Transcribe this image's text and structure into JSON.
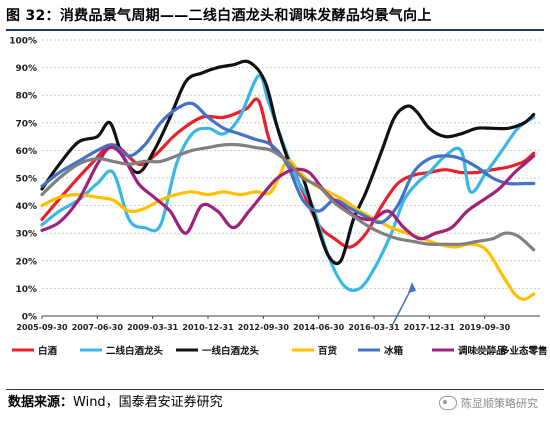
{
  "figure": {
    "title": "图 32：消费品景气周期——二线白酒龙头和调味发酵品均景气向上",
    "source_label": "数据来源：",
    "source_text": "Wind，国泰君安证券研究",
    "watermark": "陈显顺策略研究",
    "watermark_icon": "wechat-icon"
  },
  "chart_data": {
    "type": "line",
    "x_labels": [
      "2005-09-30",
      "2007-06-30",
      "2009-03-31",
      "2010-12-31",
      "2012-09-30",
      "2014-06-30",
      "2016-03-31",
      "2017-12-31",
      "2019-09-30"
    ],
    "x_range": [
      2005.75,
      2021.5
    ],
    "ylim": [
      0,
      100
    ],
    "yticks": [
      0,
      10,
      20,
      30,
      40,
      50,
      60,
      70,
      80,
      90,
      100
    ],
    "ytick_format": "%",
    "grid": "horizontal-dotted",
    "legend_position": "bottom",
    "annotation": "blue arrow pointing up-right near 2016-2017 trough",
    "series": [
      {
        "name": "白酒",
        "color": "#e8212a",
        "style": "solid",
        "points": [
          [
            2005.75,
            35
          ],
          [
            2006.5,
            45
          ],
          [
            2007.3,
            55
          ],
          [
            2008.0,
            62
          ],
          [
            2008.8,
            55
          ],
          [
            2009.3,
            58
          ],
          [
            2010.0,
            66
          ],
          [
            2010.8,
            72
          ],
          [
            2011.5,
            72
          ],
          [
            2012.2,
            75
          ],
          [
            2012.6,
            78
          ],
          [
            2013.0,
            62
          ],
          [
            2013.6,
            55
          ],
          [
            2014.0,
            45
          ],
          [
            2014.5,
            33
          ],
          [
            2015.0,
            28
          ],
          [
            2015.5,
            25
          ],
          [
            2016.0,
            30
          ],
          [
            2016.5,
            40
          ],
          [
            2017.0,
            48
          ],
          [
            2017.5,
            51
          ],
          [
            2018.0,
            52
          ],
          [
            2018.5,
            53
          ],
          [
            2019.0,
            52
          ],
          [
            2019.5,
            52
          ],
          [
            2020.0,
            53
          ],
          [
            2020.5,
            54
          ],
          [
            2021.0,
            56
          ],
          [
            2021.3,
            59
          ]
        ]
      },
      {
        "name": "二线白酒龙头",
        "color": "#39b7e6",
        "style": "solid",
        "points": [
          [
            2005.75,
            33
          ],
          [
            2006.3,
            38
          ],
          [
            2006.9,
            42
          ],
          [
            2007.5,
            48
          ],
          [
            2008.0,
            52
          ],
          [
            2008.5,
            35
          ],
          [
            2009.0,
            32
          ],
          [
            2009.5,
            33
          ],
          [
            2010.0,
            55
          ],
          [
            2010.5,
            66
          ],
          [
            2011.0,
            68
          ],
          [
            2011.5,
            66
          ],
          [
            2012.0,
            72
          ],
          [
            2012.6,
            87
          ],
          [
            2012.9,
            78
          ],
          [
            2013.3,
            65
          ],
          [
            2013.8,
            50
          ],
          [
            2014.3,
            40
          ],
          [
            2014.8,
            22
          ],
          [
            2015.3,
            11
          ],
          [
            2015.8,
            10
          ],
          [
            2016.3,
            18
          ],
          [
            2016.8,
            30
          ],
          [
            2017.2,
            42
          ],
          [
            2017.6,
            48
          ],
          [
            2018.0,
            52
          ],
          [
            2018.5,
            58
          ],
          [
            2019.0,
            60
          ],
          [
            2019.3,
            45
          ],
          [
            2019.8,
            52
          ],
          [
            2020.3,
            60
          ],
          [
            2020.8,
            68
          ],
          [
            2021.3,
            72
          ]
        ]
      },
      {
        "name": "一线白酒龙头",
        "color": "#111111",
        "style": "solid",
        "points": [
          [
            2005.75,
            46
          ],
          [
            2006.3,
            55
          ],
          [
            2006.9,
            63
          ],
          [
            2007.5,
            65
          ],
          [
            2007.9,
            70
          ],
          [
            2008.3,
            58
          ],
          [
            2008.8,
            52
          ],
          [
            2009.3,
            60
          ],
          [
            2009.8,
            72
          ],
          [
            2010.3,
            85
          ],
          [
            2010.8,
            88
          ],
          [
            2011.3,
            90
          ],
          [
            2011.8,
            91
          ],
          [
            2012.3,
            92
          ],
          [
            2012.8,
            85
          ],
          [
            2013.2,
            68
          ],
          [
            2013.6,
            55
          ],
          [
            2014.0,
            50
          ],
          [
            2014.4,
            35
          ],
          [
            2014.8,
            22
          ],
          [
            2015.2,
            20
          ],
          [
            2015.6,
            35
          ],
          [
            2016.0,
            45
          ],
          [
            2016.5,
            60
          ],
          [
            2016.9,
            72
          ],
          [
            2017.3,
            76
          ],
          [
            2017.6,
            74
          ],
          [
            2018.0,
            68
          ],
          [
            2018.5,
            65
          ],
          [
            2019.0,
            66
          ],
          [
            2019.5,
            68
          ],
          [
            2020.0,
            68
          ],
          [
            2020.5,
            68
          ],
          [
            2021.0,
            70
          ],
          [
            2021.3,
            73
          ]
        ]
      },
      {
        "name": "百货",
        "color": "#ffc000",
        "style": "solid",
        "points": [
          [
            2005.75,
            40
          ],
          [
            2006.3,
            43
          ],
          [
            2006.9,
            44
          ],
          [
            2007.5,
            43
          ],
          [
            2008.0,
            42
          ],
          [
            2008.5,
            38
          ],
          [
            2009.0,
            39
          ],
          [
            2009.5,
            42
          ],
          [
            2010.0,
            44
          ],
          [
            2010.5,
            45
          ],
          [
            2011.0,
            44
          ],
          [
            2011.5,
            45
          ],
          [
            2012.0,
            44
          ],
          [
            2012.5,
            45
          ],
          [
            2013.0,
            45
          ],
          [
            2013.5,
            56
          ],
          [
            2013.9,
            52
          ],
          [
            2014.3,
            48
          ],
          [
            2014.8,
            45
          ],
          [
            2015.3,
            42
          ],
          [
            2015.8,
            38
          ],
          [
            2016.3,
            35
          ],
          [
            2016.8,
            32
          ],
          [
            2017.3,
            30
          ],
          [
            2017.8,
            28
          ],
          [
            2018.3,
            26
          ],
          [
            2018.8,
            25
          ],
          [
            2019.3,
            26
          ],
          [
            2019.8,
            24
          ],
          [
            2020.3,
            15
          ],
          [
            2020.7,
            8
          ],
          [
            2021.0,
            6
          ],
          [
            2021.3,
            8
          ]
        ]
      },
      {
        "name": "冰箱",
        "color": "#4472c4",
        "style": "solid",
        "points": [
          [
            2005.75,
            47
          ],
          [
            2006.3,
            52
          ],
          [
            2006.9,
            56
          ],
          [
            2007.5,
            60
          ],
          [
            2008.0,
            62
          ],
          [
            2008.5,
            58
          ],
          [
            2009.0,
            62
          ],
          [
            2009.5,
            70
          ],
          [
            2010.0,
            75
          ],
          [
            2010.5,
            77
          ],
          [
            2011.0,
            72
          ],
          [
            2011.5,
            68
          ],
          [
            2012.0,
            66
          ],
          [
            2012.5,
            64
          ],
          [
            2013.0,
            62
          ],
          [
            2013.5,
            55
          ],
          [
            2014.0,
            42
          ],
          [
            2014.5,
            38
          ],
          [
            2015.0,
            42
          ],
          [
            2015.5,
            39
          ],
          [
            2016.0,
            36
          ],
          [
            2016.5,
            34
          ],
          [
            2017.0,
            40
          ],
          [
            2017.5,
            52
          ],
          [
            2018.0,
            57
          ],
          [
            2018.5,
            58
          ],
          [
            2019.0,
            57
          ],
          [
            2019.5,
            54
          ],
          [
            2020.0,
            50
          ],
          [
            2020.5,
            48
          ],
          [
            2021.0,
            48
          ],
          [
            2021.3,
            48
          ]
        ]
      },
      {
        "name": "调味发酵品",
        "color": "#a0217b",
        "style": "solid",
        "points": [
          [
            2005.75,
            31
          ],
          [
            2006.3,
            34
          ],
          [
            2006.9,
            42
          ],
          [
            2007.5,
            55
          ],
          [
            2007.9,
            61
          ],
          [
            2008.3,
            58
          ],
          [
            2008.8,
            48
          ],
          [
            2009.3,
            43
          ],
          [
            2009.8,
            38
          ],
          [
            2010.3,
            30
          ],
          [
            2010.8,
            40
          ],
          [
            2011.3,
            38
          ],
          [
            2011.8,
            32
          ],
          [
            2012.3,
            38
          ],
          [
            2012.8,
            45
          ],
          [
            2013.2,
            50
          ],
          [
            2013.7,
            53
          ],
          [
            2014.2,
            52
          ],
          [
            2014.7,
            45
          ],
          [
            2015.2,
            40
          ],
          [
            2015.7,
            36
          ],
          [
            2016.2,
            35
          ],
          [
            2016.7,
            38
          ],
          [
            2017.2,
            32
          ],
          [
            2017.7,
            28
          ],
          [
            2018.2,
            30
          ],
          [
            2018.7,
            32
          ],
          [
            2019.2,
            38
          ],
          [
            2019.7,
            42
          ],
          [
            2020.2,
            46
          ],
          [
            2020.7,
            52
          ],
          [
            2021.0,
            55
          ],
          [
            2021.3,
            58
          ]
        ]
      },
      {
        "name": "多业态零售",
        "color": "#808080",
        "style": "solid",
        "points": [
          [
            2005.75,
            44
          ],
          [
            2006.3,
            50
          ],
          [
            2006.9,
            55
          ],
          [
            2007.5,
            57
          ],
          [
            2008.0,
            56
          ],
          [
            2008.5,
            55
          ],
          [
            2009.0,
            56
          ],
          [
            2009.5,
            56
          ],
          [
            2010.0,
            58
          ],
          [
            2010.5,
            60
          ],
          [
            2011.0,
            61
          ],
          [
            2011.5,
            62
          ],
          [
            2012.0,
            62
          ],
          [
            2012.5,
            61
          ],
          [
            2013.0,
            60
          ],
          [
            2013.5,
            56
          ],
          [
            2014.0,
            50
          ],
          [
            2014.5,
            47
          ],
          [
            2015.0,
            41
          ],
          [
            2015.5,
            37
          ],
          [
            2016.0,
            33
          ],
          [
            2016.5,
            30
          ],
          [
            2017.0,
            28
          ],
          [
            2017.5,
            27
          ],
          [
            2018.0,
            26
          ],
          [
            2018.5,
            26
          ],
          [
            2019.0,
            26
          ],
          [
            2019.5,
            27
          ],
          [
            2020.0,
            28
          ],
          [
            2020.4,
            30
          ],
          [
            2020.8,
            29
          ],
          [
            2021.3,
            24
          ]
        ]
      }
    ]
  }
}
